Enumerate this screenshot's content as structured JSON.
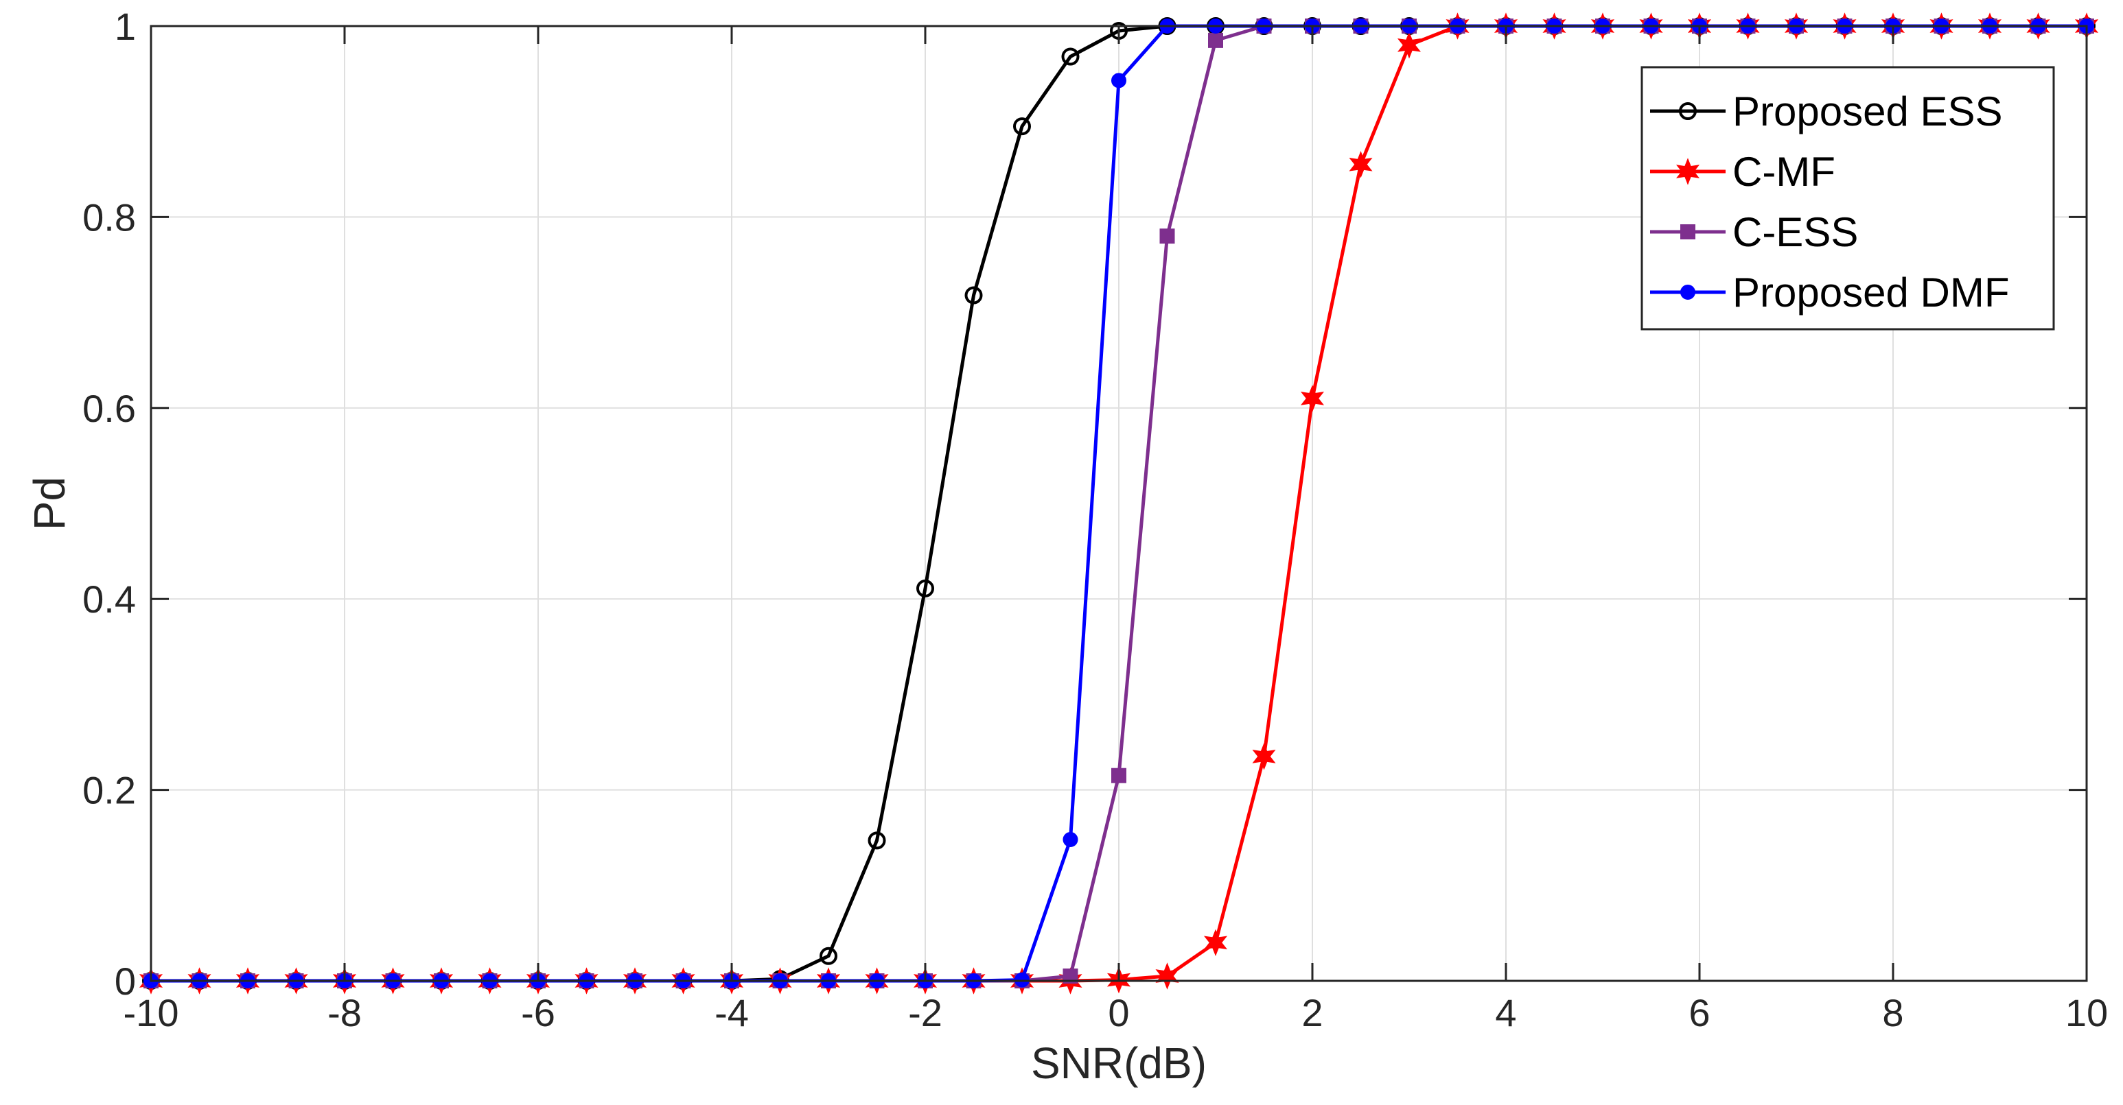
{
  "chart_data": {
    "type": "line",
    "xlabel": "SNR(dB)",
    "ylabel": "Pd",
    "xlim": [
      -10,
      10
    ],
    "ylim": [
      0,
      1
    ],
    "xticks": [
      -10,
      -8,
      -6,
      -4,
      -2,
      0,
      2,
      4,
      6,
      8,
      10
    ],
    "yticks": [
      0,
      0.2,
      0.4,
      0.6,
      0.8,
      1
    ],
    "xtick_labels": [
      "-10",
      "-8",
      "-6",
      "-4",
      "-2",
      "0",
      "2",
      "4",
      "6",
      "8",
      "10"
    ],
    "ytick_labels": [
      "0",
      "0.2",
      "0.4",
      "0.6",
      "0.8",
      "1"
    ],
    "grid": true,
    "legend_position": "top-right",
    "x": [
      -10,
      -9.5,
      -9,
      -8.5,
      -8,
      -7.5,
      -7,
      -6.5,
      -6,
      -5.5,
      -5,
      -4.5,
      -4,
      -3.5,
      -3,
      -2.5,
      -2,
      -1.5,
      -1,
      -0.5,
      0,
      0.5,
      1,
      1.5,
      2,
      2.5,
      3,
      3.5,
      4,
      4.5,
      5,
      5.5,
      6,
      6.5,
      7,
      7.5,
      8,
      8.5,
      9,
      9.5,
      10
    ],
    "series": [
      {
        "name": "Proposed ESS",
        "color": "#000000",
        "marker": "circle-open",
        "values": [
          0,
          0,
          0,
          0,
          0,
          0,
          0,
          0,
          0,
          0,
          0,
          0,
          0,
          0.002,
          0.026,
          0.147,
          0.411,
          0.718,
          0.895,
          0.968,
          0.995,
          1,
          1,
          1,
          1,
          1,
          1,
          1,
          1,
          1,
          1,
          1,
          1,
          1,
          1,
          1,
          1,
          1,
          1,
          1,
          1
        ]
      },
      {
        "name": "C-MF",
        "color": "#ff0000",
        "marker": "hexagram",
        "values": [
          0,
          0,
          0,
          0,
          0,
          0,
          0,
          0,
          0,
          0,
          0,
          0,
          0,
          0,
          0,
          0,
          0,
          0,
          0,
          0,
          0.001,
          0.005,
          0.04,
          0.235,
          0.61,
          0.855,
          0.98,
          1,
          1,
          1,
          1,
          1,
          1,
          1,
          1,
          1,
          1,
          1,
          1,
          1,
          1
        ]
      },
      {
        "name": "C-ESS",
        "color": "#7e2f8e",
        "marker": "square",
        "values": [
          0,
          0,
          0,
          0,
          0,
          0,
          0,
          0,
          0,
          0,
          0,
          0,
          0,
          0,
          0,
          0,
          0,
          0,
          0,
          0.005,
          0.215,
          0.78,
          0.985,
          1,
          1,
          1,
          1,
          1,
          1,
          1,
          1,
          1,
          1,
          1,
          1,
          1,
          1,
          1,
          1,
          1,
          1
        ]
      },
      {
        "name": "Proposed DMF",
        "color": "#0000ff",
        "marker": "dot",
        "values": [
          0,
          0,
          0,
          0,
          0,
          0,
          0,
          0,
          0,
          0,
          0,
          0,
          0,
          0,
          0,
          0,
          0,
          0,
          0.001,
          0.148,
          0.943,
          1,
          1,
          1,
          1,
          1,
          1,
          1,
          1,
          1,
          1,
          1,
          1,
          1,
          1,
          1,
          1,
          1,
          1,
          1,
          1
        ]
      }
    ]
  }
}
